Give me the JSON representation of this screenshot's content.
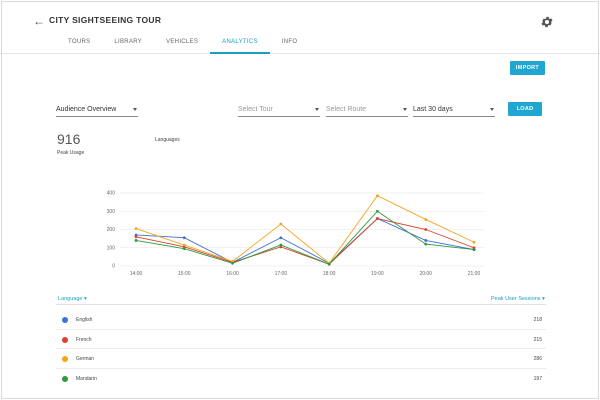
{
  "header": {
    "title": "CITY SIGHTSEEING TOUR",
    "tabs": [
      {
        "label": "TOURS",
        "active": false
      },
      {
        "label": "LIBRARY",
        "active": false
      },
      {
        "label": "VEHICLES",
        "active": false
      },
      {
        "label": "ANALYTICS",
        "active": true
      },
      {
        "label": "INFO",
        "active": false
      }
    ]
  },
  "actions": {
    "import_label": "IMPORT",
    "load_label": "LOAD"
  },
  "filters": {
    "overview": "Audience Overview",
    "tour_placeholder": "Select Tour",
    "route_placeholder": "Select Route",
    "range": "Last 30 days"
  },
  "summary": {
    "value": "916",
    "label": "Peak Usage",
    "chart_title": "Languages"
  },
  "chart_data": {
    "type": "line",
    "title": "Languages",
    "x": [
      "14:00",
      "15:00",
      "16:00",
      "17:00",
      "18:00",
      "19:00",
      "20:00",
      "21:00"
    ],
    "ylim": [
      0,
      400
    ],
    "yticks": [
      "0",
      "100",
      "200",
      "300",
      "400"
    ],
    "grid": true,
    "series": [
      {
        "name": "English",
        "color": "#3f6fd1",
        "values": [
          170,
          155,
          20,
          155,
          15,
          260,
          140,
          90
        ]
      },
      {
        "name": "French",
        "color": "#d9412b",
        "values": [
          160,
          105,
          20,
          105,
          10,
          260,
          200,
          100
        ]
      },
      {
        "name": "German",
        "color": "#f7a31c",
        "values": [
          205,
          115,
          25,
          230,
          15,
          385,
          255,
          130
        ]
      },
      {
        "name": "Mandarin",
        "color": "#2e9a3c",
        "values": [
          140,
          95,
          15,
          115,
          10,
          300,
          120,
          90
        ]
      }
    ]
  },
  "table": {
    "col_language": "Language",
    "col_peak": "Peak User Sessions",
    "rows": [
      {
        "name": "English",
        "value": "218",
        "color": "#3f6fd1"
      },
      {
        "name": "French",
        "value": "215",
        "color": "#d9412b"
      },
      {
        "name": "German",
        "value": "286",
        "color": "#f7a31c"
      },
      {
        "name": "Mandarin",
        "value": "197",
        "color": "#2e9a3c"
      }
    ]
  }
}
